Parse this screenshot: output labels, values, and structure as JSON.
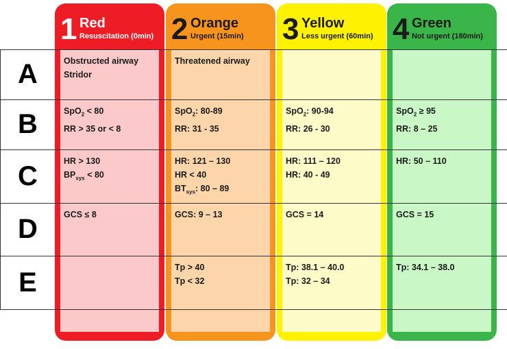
{
  "columns": [
    {
      "number": "1",
      "name": "Red",
      "subtitle": "Resuscitation (0min)",
      "color": "#ee1c24",
      "inner_color": "#fbc9ca",
      "text_color": "#ffffff"
    },
    {
      "number": "2",
      "name": "Orange",
      "subtitle": "Urgent (15min)",
      "color": "#f7941d",
      "inner_color": "#fcd6aa",
      "text_color": "#1a1a1a"
    },
    {
      "number": "3",
      "name": "Yellow",
      "subtitle": "Less urgent (60min)",
      "color": "#fff200",
      "inner_color": "#fdfbc8",
      "text_color": "#1a1a1a"
    },
    {
      "number": "4",
      "name": "Green",
      "subtitle": "Not urgent (180min)",
      "color": "#39b54a",
      "inner_color": "#c9f8c6",
      "text_color": "#1a1a1a"
    }
  ],
  "rows": [
    {
      "label": "A",
      "cells": [
        [
          [
            {
              "text": "Obstructed airway"
            }
          ],
          [
            {
              "text": "Stridor"
            }
          ]
        ],
        [
          [
            {
              "text": "Threatened airway"
            }
          ]
        ],
        [],
        []
      ]
    },
    {
      "label": "B",
      "cells": [
        [
          [
            {
              "text": "SpO"
            },
            {
              "sub": "2"
            },
            {
              "text": " < 80"
            }
          ],
          [
            {
              "text": "RR > 35 or < 8"
            }
          ]
        ],
        [
          [
            {
              "text": "SpO"
            },
            {
              "sub": "2"
            },
            {
              "text": ": 80-89"
            }
          ],
          [
            {
              "text": "RR: 31 - 35"
            }
          ]
        ],
        [
          [
            {
              "text": "SpO"
            },
            {
              "sub": "2"
            },
            {
              "text": ": 90-94"
            }
          ],
          [
            {
              "text": "RR: 26 - 30"
            }
          ]
        ],
        [
          [
            {
              "text": "SpO"
            },
            {
              "sub": "2"
            },
            {
              "text": " ≥ 95"
            }
          ],
          [
            {
              "text": "RR: 8 – 25"
            }
          ]
        ]
      ]
    },
    {
      "label": "C",
      "cells": [
        [
          [
            {
              "text": "HR > 130"
            }
          ],
          [
            {
              "text": "BP"
            },
            {
              "sub": "sys"
            },
            {
              "text": " < 80"
            }
          ]
        ],
        [
          [
            {
              "text": "HR: 121 – 130"
            }
          ],
          [
            {
              "text": "HR < 40"
            }
          ],
          [
            {
              "text": "BT"
            },
            {
              "sub": "sys"
            },
            {
              "text": ": 80 – 89"
            }
          ]
        ],
        [
          [
            {
              "text": "HR: 111 – 120"
            }
          ],
          [
            {
              "text": "HR: 40 - 49"
            }
          ]
        ],
        [
          [
            {
              "text": "HR: 50 – 110"
            }
          ]
        ]
      ]
    },
    {
      "label": "D",
      "cells": [
        [
          [
            {
              "text": "GCS ≤ 8"
            }
          ]
        ],
        [
          [
            {
              "text": "GCS: 9 – 13"
            }
          ]
        ],
        [
          [
            {
              "text": "GCS = 14"
            }
          ]
        ],
        [
          [
            {
              "text": "GCS = 15"
            }
          ]
        ]
      ]
    },
    {
      "label": "E",
      "cells": [
        [],
        [
          [
            {
              "text": "Tp > 40"
            }
          ],
          [
            {
              "text": "Tp < 32"
            }
          ]
        ],
        [
          [
            {
              "text": "Tp: 38.1 – 40.0"
            }
          ],
          [
            {
              "text": "Tp: 32 – 34"
            }
          ]
        ],
        [
          [
            {
              "text": "Tp: 34.1 – 38.0"
            }
          ]
        ]
      ]
    }
  ]
}
